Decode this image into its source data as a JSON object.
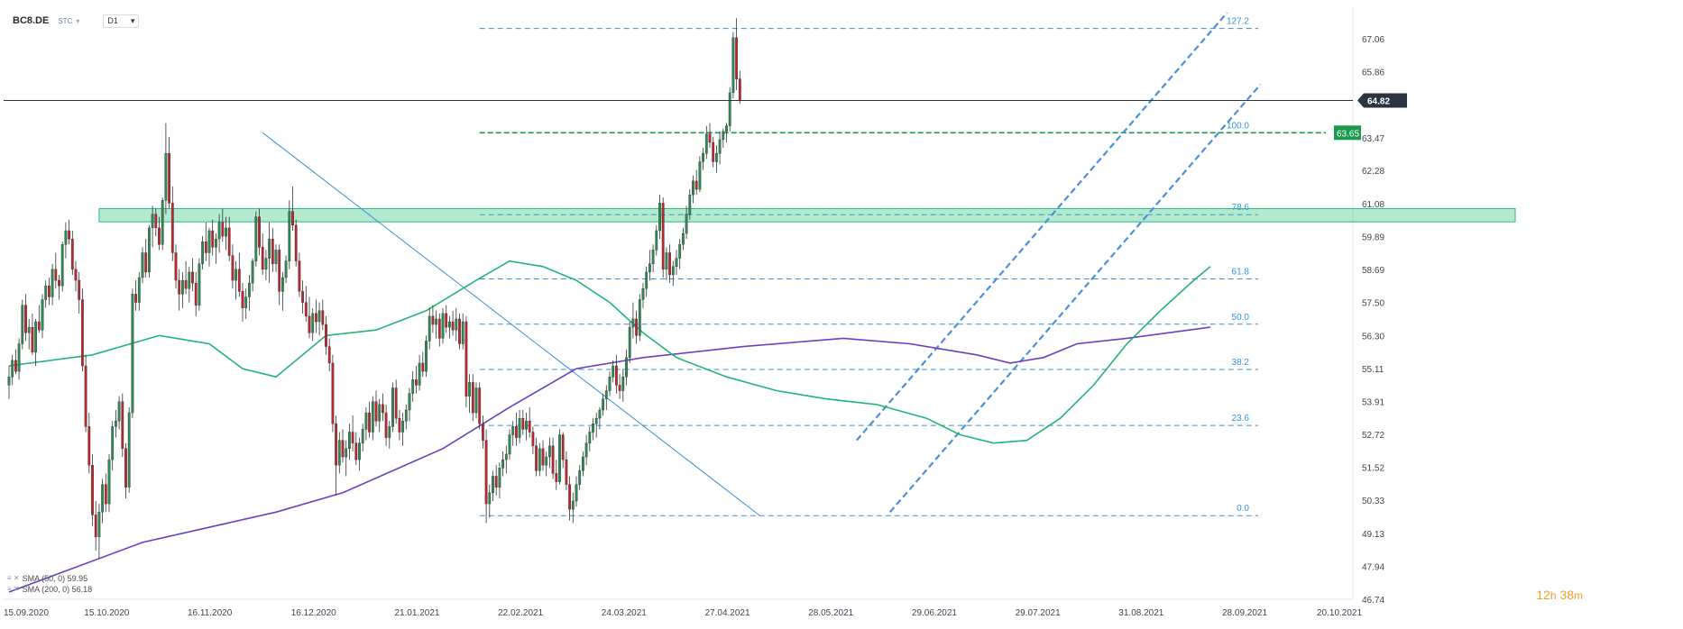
{
  "header": {
    "symbol": "BC8.DE",
    "source": "STC",
    "timeframe": "D1"
  },
  "timer": {
    "hours": "12",
    "h_label": "h",
    "minutes": "38",
    "m_label": "m"
  },
  "legend": [
    {
      "icons": "≡ ✕",
      "text": "SMA (50, 0) 59.95"
    },
    {
      "icons": "≡ ✕",
      "text": "SMA (200, 0) 56.18"
    }
  ],
  "colors": {
    "up": "#2e8b57",
    "down": "#c0262d",
    "sma50": "#22b573",
    "sma200": "#6a3fc2",
    "fib": "#3a8fd8",
    "channel": "#4a90d9",
    "zone": "#27c07a",
    "current": "#2b3440",
    "level": "#1a9b4b"
  },
  "chart_data": {
    "type": "candlestick",
    "ylim": [
      46.74,
      68.2
    ],
    "y_ticks": [
      "67.06",
      "65.86",
      "64.82",
      "63.47",
      "62.28",
      "61.08",
      "59.89",
      "58.69",
      "57.50",
      "56.30",
      "55.11",
      "53.91",
      "52.72",
      "51.52",
      "50.33",
      "49.13",
      "47.94",
      "46.74"
    ],
    "x_ticks": [
      "15.09.2020",
      "15.10.2020",
      "16.11.2020",
      "16.12.2020",
      "21.01.2021",
      "22.02.2021",
      "24.03.2021",
      "27.04.2021",
      "28.05.2021",
      "29.06.2021",
      "29.07.2021",
      "31.08.2021",
      "28.09.2021",
      "20.10.2021"
    ],
    "current_price": "64.82",
    "level_price": "63.65",
    "fib_levels": [
      {
        "label": "127.2",
        "price": 67.43
      },
      {
        "label": "100.0",
        "price": 63.65
      },
      {
        "label": "78.6",
        "price": 60.68
      },
      {
        "label": "61.8",
        "price": 58.35
      },
      {
        "label": "50.0",
        "price": 56.71
      },
      {
        "label": "38.2",
        "price": 55.07
      },
      {
        "label": "23.6",
        "price": 53.04
      },
      {
        "label": "0.0",
        "price": 49.77
      }
    ],
    "resistance_zone": [
      60.42,
      60.9
    ],
    "sma50": [
      [
        0,
        55.2
      ],
      [
        25,
        55.6
      ],
      [
        45,
        56.3
      ],
      [
        60,
        56.0
      ],
      [
        70,
        55.1
      ],
      [
        80,
        54.8
      ],
      [
        95,
        56.3
      ],
      [
        110,
        56.5
      ],
      [
        125,
        57.2
      ],
      [
        140,
        58.3
      ],
      [
        150,
        59.0
      ],
      [
        160,
        58.8
      ],
      [
        170,
        58.3
      ],
      [
        180,
        57.5
      ],
      [
        190,
        56.4
      ],
      [
        200,
        55.5
      ],
      [
        215,
        54.8
      ],
      [
        230,
        54.3
      ],
      [
        245,
        54.0
      ],
      [
        260,
        53.8
      ],
      [
        275,
        53.3
      ],
      [
        285,
        52.7
      ],
      [
        295,
        52.4
      ],
      [
        305,
        52.5
      ],
      [
        315,
        53.3
      ],
      [
        325,
        54.5
      ],
      [
        335,
        56.0
      ],
      [
        345,
        57.2
      ],
      [
        355,
        58.3
      ],
      [
        360,
        58.8
      ]
    ],
    "sma200": [
      [
        0,
        47.0
      ],
      [
        40,
        48.8
      ],
      [
        80,
        49.9
      ],
      [
        100,
        50.6
      ],
      [
        130,
        52.2
      ],
      [
        150,
        53.7
      ],
      [
        170,
        55.1
      ],
      [
        190,
        55.5
      ],
      [
        220,
        55.9
      ],
      [
        250,
        56.2
      ],
      [
        270,
        56.0
      ],
      [
        290,
        55.6
      ],
      [
        300,
        55.3
      ],
      [
        310,
        55.5
      ],
      [
        320,
        56.0
      ],
      [
        335,
        56.2
      ],
      [
        360,
        56.6
      ]
    ],
    "candles": [
      [
        54.5,
        55.2,
        54.0,
        54.8
      ],
      [
        54.8,
        55.6,
        54.5,
        55.4
      ],
      [
        55.4,
        55.8,
        54.9,
        55.0
      ],
      [
        55.0,
        56.2,
        54.7,
        56.0
      ],
      [
        56.0,
        57.6,
        55.8,
        57.4
      ],
      [
        57.4,
        57.8,
        56.1,
        56.4
      ],
      [
        56.4,
        56.9,
        55.8,
        56.6
      ],
      [
        56.6,
        57.1,
        55.6,
        55.7
      ],
      [
        55.7,
        56.9,
        55.2,
        56.8
      ],
      [
        56.8,
        57.4,
        56.4,
        56.5
      ],
      [
        56.5,
        57.8,
        56.2,
        57.6
      ],
      [
        57.6,
        58.3,
        57.3,
        58.1
      ],
      [
        58.1,
        58.4,
        57.4,
        57.7
      ],
      [
        57.7,
        58.9,
        57.4,
        58.7
      ],
      [
        58.7,
        59.3,
        58.0,
        58.3
      ],
      [
        58.3,
        58.5,
        57.6,
        58.1
      ],
      [
        58.1,
        59.7,
        57.9,
        59.6
      ],
      [
        59.6,
        60.4,
        59.1,
        60.1
      ],
      [
        60.1,
        60.5,
        59.6,
        59.8
      ],
      [
        59.8,
        60.1,
        58.5,
        58.7
      ],
      [
        58.7,
        59.0,
        57.9,
        58.3
      ],
      [
        58.3,
        58.6,
        57.1,
        57.6
      ],
      [
        57.6,
        58.0,
        55.0,
        55.2
      ],
      [
        55.2,
        55.6,
        52.8,
        53.0
      ],
      [
        53.0,
        53.5,
        51.3,
        51.6
      ],
      [
        51.6,
        52.0,
        49.4,
        49.8
      ],
      [
        49.8,
        50.3,
        48.5,
        49.0
      ],
      [
        49.0,
        50.2,
        48.2,
        49.9
      ],
      [
        49.9,
        51.1,
        49.5,
        50.9
      ],
      [
        50.9,
        51.3,
        49.9,
        50.2
      ],
      [
        50.2,
        52.0,
        49.9,
        51.8
      ],
      [
        51.8,
        53.2,
        51.4,
        53.0
      ],
      [
        53.0,
        53.6,
        52.6,
        53.2
      ],
      [
        53.2,
        54.1,
        52.9,
        53.9
      ],
      [
        53.9,
        54.2,
        51.9,
        52.2
      ],
      [
        52.2,
        52.4,
        50.4,
        50.8
      ],
      [
        50.8,
        53.7,
        50.6,
        53.5
      ],
      [
        53.5,
        58.0,
        53.3,
        57.8
      ],
      [
        57.8,
        58.3,
        57.2,
        57.5
      ],
      [
        57.5,
        58.6,
        57.2,
        58.4
      ],
      [
        58.4,
        59.5,
        58.2,
        59.3
      ],
      [
        59.3,
        59.8,
        58.4,
        58.6
      ],
      [
        58.6,
        60.3,
        58.4,
        60.2
      ],
      [
        60.2,
        61.0,
        59.5,
        60.7
      ],
      [
        60.7,
        60.9,
        59.9,
        60.2
      ],
      [
        60.2,
        60.6,
        59.4,
        59.6
      ],
      [
        59.6,
        61.3,
        59.4,
        61.2
      ],
      [
        61.2,
        64.0,
        60.7,
        62.9
      ],
      [
        62.9,
        63.5,
        60.9,
        61.1
      ],
      [
        61.1,
        61.7,
        59.0,
        59.3
      ],
      [
        59.3,
        59.6,
        58.0,
        58.3
      ],
      [
        58.3,
        58.7,
        57.2,
        57.8
      ],
      [
        57.8,
        58.6,
        57.3,
        58.3
      ],
      [
        58.3,
        59.0,
        57.8,
        58.0
      ],
      [
        58.0,
        58.8,
        57.5,
        58.6
      ],
      [
        58.6,
        59.1,
        57.9,
        58.2
      ],
      [
        58.2,
        58.6,
        57.0,
        57.4
      ],
      [
        57.4,
        59.1,
        57.2,
        58.9
      ],
      [
        58.9,
        59.9,
        58.7,
        59.7
      ],
      [
        59.7,
        60.4,
        59.0,
        59.3
      ],
      [
        59.3,
        60.2,
        58.8,
        60.1
      ],
      [
        60.1,
        60.5,
        59.2,
        59.5
      ],
      [
        59.5,
        60.0,
        58.9,
        59.8
      ],
      [
        59.8,
        60.7,
        59.3,
        60.4
      ],
      [
        60.4,
        60.9,
        59.7,
        59.9
      ],
      [
        59.9,
        60.6,
        59.4,
        60.2
      ],
      [
        60.2,
        60.6,
        59.0,
        59.2
      ],
      [
        59.2,
        59.6,
        58.0,
        58.3
      ],
      [
        58.3,
        59.0,
        57.6,
        58.7
      ],
      [
        58.7,
        59.3,
        57.7,
        57.9
      ],
      [
        57.9,
        58.2,
        56.8,
        57.3
      ],
      [
        57.3,
        58.0,
        56.9,
        57.7
      ],
      [
        57.7,
        58.5,
        57.2,
        58.2
      ],
      [
        58.2,
        59.1,
        57.9,
        59.0
      ],
      [
        59.0,
        60.8,
        58.8,
        60.6
      ],
      [
        60.6,
        60.9,
        59.2,
        59.5
      ],
      [
        59.5,
        60.0,
        58.5,
        58.7
      ],
      [
        58.7,
        59.4,
        58.3,
        59.1
      ],
      [
        59.1,
        60.4,
        58.2,
        59.8
      ],
      [
        59.8,
        60.2,
        58.6,
        58.9
      ],
      [
        58.9,
        59.6,
        58.6,
        59.4
      ],
      [
        59.4,
        59.6,
        57.4,
        57.9
      ],
      [
        57.9,
        58.6,
        57.2,
        58.4
      ],
      [
        58.4,
        59.2,
        58.2,
        59.0
      ],
      [
        59.0,
        61.2,
        58.7,
        60.8
      ],
      [
        60.8,
        61.7,
        60.1,
        60.3
      ],
      [
        60.3,
        60.5,
        58.8,
        59.0
      ],
      [
        59.0,
        59.3,
        57.7,
        57.9
      ],
      [
        57.9,
        58.3,
        57.1,
        57.5
      ],
      [
        57.5,
        58.1,
        56.8,
        57.0
      ],
      [
        57.0,
        57.7,
        56.2,
        56.4
      ],
      [
        56.4,
        57.3,
        56.1,
        57.1
      ],
      [
        57.1,
        57.6,
        56.4,
        56.8
      ],
      [
        56.8,
        57.5,
        56.3,
        57.2
      ],
      [
        57.2,
        57.6,
        56.5,
        56.7
      ],
      [
        56.7,
        57.0,
        55.6,
        55.9
      ],
      [
        55.9,
        56.2,
        55.0,
        55.3
      ],
      [
        55.3,
        55.6,
        52.8,
        53.1
      ],
      [
        53.1,
        53.4,
        50.5,
        51.6
      ],
      [
        51.6,
        52.8,
        51.3,
        52.5
      ],
      [
        52.5,
        52.9,
        51.7,
        51.9
      ],
      [
        51.9,
        52.5,
        51.2,
        52.2
      ],
      [
        52.2,
        53.1,
        51.8,
        52.8
      ],
      [
        52.8,
        53.4,
        52.1,
        52.4
      ],
      [
        52.4,
        52.8,
        51.6,
        51.8
      ],
      [
        51.8,
        52.6,
        51.4,
        52.4
      ],
      [
        52.4,
        53.1,
        52.1,
        52.9
      ],
      [
        52.9,
        53.7,
        52.5,
        53.5
      ],
      [
        53.5,
        53.9,
        52.6,
        52.8
      ],
      [
        52.8,
        54.1,
        52.5,
        53.9
      ],
      [
        53.9,
        54.3,
        53.0,
        53.2
      ],
      [
        53.2,
        54.0,
        52.8,
        53.8
      ],
      [
        53.8,
        54.2,
        53.2,
        53.5
      ],
      [
        53.5,
        53.8,
        52.3,
        52.6
      ],
      [
        52.6,
        53.2,
        52.2,
        53.0
      ],
      [
        53.0,
        54.6,
        52.8,
        54.4
      ],
      [
        54.4,
        54.7,
        53.1,
        53.3
      ],
      [
        53.3,
        53.6,
        52.5,
        52.8
      ],
      [
        52.8,
        53.5,
        52.3,
        53.2
      ],
      [
        53.2,
        53.8,
        52.9,
        53.6
      ],
      [
        53.6,
        54.4,
        53.2,
        54.2
      ],
      [
        54.2,
        55.0,
        53.9,
        54.7
      ],
      [
        54.7,
        55.2,
        54.2,
        54.5
      ],
      [
        54.5,
        55.6,
        54.3,
        55.3
      ],
      [
        55.3,
        55.7,
        54.8,
        55.0
      ],
      [
        55.0,
        56.3,
        54.8,
        56.1
      ],
      [
        56.1,
        57.3,
        55.8,
        57.0
      ],
      [
        57.0,
        57.4,
        56.4,
        56.7
      ],
      [
        56.7,
        57.2,
        56.2,
        56.9
      ],
      [
        56.9,
        57.1,
        55.9,
        56.2
      ],
      [
        56.2,
        57.3,
        56.0,
        57.1
      ],
      [
        57.1,
        57.4,
        56.4,
        56.6
      ],
      [
        56.6,
        57.0,
        56.2,
        56.8
      ],
      [
        56.8,
        57.2,
        56.3,
        56.5
      ],
      [
        56.5,
        57.3,
        56.1,
        56.9
      ],
      [
        56.9,
        57.1,
        55.8,
        56.0
      ],
      [
        56.0,
        57.1,
        55.8,
        56.8
      ],
      [
        56.8,
        57.0,
        53.7,
        54.1
      ],
      [
        54.1,
        54.9,
        53.5,
        54.6
      ],
      [
        54.6,
        54.9,
        53.2,
        53.5
      ],
      [
        53.5,
        54.6,
        53.3,
        54.4
      ],
      [
        54.4,
        54.6,
        52.9,
        53.1
      ],
      [
        53.1,
        53.4,
        52.2,
        52.5
      ],
      [
        52.5,
        52.9,
        49.5,
        50.2
      ],
      [
        50.2,
        50.9,
        49.7,
        50.6
      ],
      [
        50.6,
        51.4,
        50.3,
        51.2
      ],
      [
        51.2,
        51.6,
        50.5,
        50.8
      ],
      [
        50.8,
        51.7,
        50.4,
        51.5
      ],
      [
        51.5,
        52.1,
        51.2,
        51.8
      ],
      [
        51.8,
        52.3,
        51.3,
        52.0
      ],
      [
        52.0,
        52.9,
        51.8,
        52.7
      ],
      [
        52.7,
        53.2,
        52.3,
        53.0
      ],
      [
        53.0,
        53.5,
        52.3,
        52.6
      ],
      [
        52.6,
        53.6,
        52.4,
        53.3
      ],
      [
        53.3,
        53.6,
        52.7,
        52.9
      ],
      [
        52.9,
        53.5,
        52.5,
        53.2
      ],
      [
        53.2,
        53.7,
        52.6,
        52.8
      ],
      [
        52.8,
        53.0,
        52.0,
        52.3
      ],
      [
        52.3,
        52.6,
        51.2,
        51.4
      ],
      [
        51.4,
        52.4,
        51.2,
        52.2
      ],
      [
        52.2,
        52.5,
        51.4,
        51.6
      ],
      [
        51.6,
        52.1,
        51.2,
        51.9
      ],
      [
        51.9,
        52.6,
        51.5,
        52.3
      ],
      [
        52.3,
        52.6,
        51.1,
        51.3
      ],
      [
        51.3,
        51.8,
        50.7,
        51.0
      ],
      [
        51.0,
        52.9,
        50.9,
        52.7
      ],
      [
        52.7,
        52.8,
        51.5,
        51.8
      ],
      [
        51.8,
        52.1,
        50.7,
        50.9
      ],
      [
        50.9,
        51.2,
        49.6,
        50.0
      ],
      [
        50.0,
        50.6,
        49.5,
        50.3
      ],
      [
        50.3,
        51.2,
        50.1,
        50.9
      ],
      [
        50.9,
        51.6,
        50.7,
        51.4
      ],
      [
        51.4,
        52.1,
        51.2,
        51.9
      ],
      [
        51.9,
        52.7,
        51.6,
        52.4
      ],
      [
        52.4,
        53.0,
        52.1,
        52.8
      ],
      [
        52.8,
        53.3,
        52.5,
        53.1
      ],
      [
        53.1,
        53.5,
        52.6,
        53.3
      ],
      [
        53.3,
        53.7,
        52.9,
        53.6
      ],
      [
        53.6,
        54.2,
        53.4,
        54.0
      ],
      [
        54.0,
        54.5,
        53.6,
        54.3
      ],
      [
        54.3,
        55.0,
        54.1,
        54.8
      ],
      [
        54.8,
        55.4,
        54.6,
        55.2
      ],
      [
        55.2,
        55.6,
        54.2,
        54.5
      ],
      [
        54.5,
        54.9,
        54.0,
        54.3
      ],
      [
        54.3,
        55.1,
        53.9,
        54.8
      ],
      [
        54.8,
        55.8,
        54.5,
        55.5
      ],
      [
        55.5,
        56.8,
        55.3,
        56.6
      ],
      [
        56.6,
        57.5,
        56.2,
        56.9
      ],
      [
        56.9,
        57.2,
        56.0,
        56.3
      ],
      [
        56.3,
        57.8,
        56.1,
        57.6
      ],
      [
        57.6,
        58.2,
        57.3,
        58.0
      ],
      [
        58.0,
        58.8,
        57.7,
        58.6
      ],
      [
        58.6,
        59.4,
        58.3,
        58.9
      ],
      [
        58.9,
        59.6,
        58.6,
        59.4
      ],
      [
        59.4,
        60.3,
        59.2,
        60.1
      ],
      [
        60.1,
        61.4,
        59.8,
        61.1
      ],
      [
        61.1,
        61.3,
        58.4,
        58.7
      ],
      [
        58.7,
        59.5,
        58.3,
        59.3
      ],
      [
        59.3,
        59.6,
        58.2,
        58.5
      ],
      [
        58.5,
        59.0,
        58.1,
        58.8
      ],
      [
        58.8,
        59.4,
        58.5,
        59.1
      ],
      [
        59.1,
        59.8,
        58.7,
        59.6
      ],
      [
        59.6,
        60.2,
        59.4,
        60.0
      ],
      [
        60.0,
        61.0,
        59.8,
        60.7
      ],
      [
        60.7,
        61.6,
        60.5,
        61.4
      ],
      [
        61.4,
        62.1,
        61.1,
        61.9
      ],
      [
        61.9,
        62.3,
        61.4,
        61.6
      ],
      [
        61.6,
        62.8,
        61.5,
        62.6
      ],
      [
        62.6,
        63.1,
        62.3,
        62.9
      ],
      [
        62.9,
        63.9,
        62.7,
        63.6
      ],
      [
        63.6,
        64.0,
        63.1,
        63.3
      ],
      [
        63.3,
        63.5,
        62.4,
        62.6
      ],
      [
        62.6,
        63.2,
        62.2,
        62.9
      ],
      [
        62.9,
        63.7,
        62.5,
        63.4
      ],
      [
        63.4,
        63.8,
        63.1,
        63.7
      ],
      [
        63.7,
        64.0,
        63.3,
        63.9
      ],
      [
        63.9,
        65.3,
        63.7,
        65.1
      ],
      [
        65.1,
        67.3,
        64.9,
        67.1
      ],
      [
        67.1,
        67.8,
        65.2,
        65.6
      ],
      [
        65.6,
        65.9,
        64.7,
        64.82
      ]
    ]
  }
}
